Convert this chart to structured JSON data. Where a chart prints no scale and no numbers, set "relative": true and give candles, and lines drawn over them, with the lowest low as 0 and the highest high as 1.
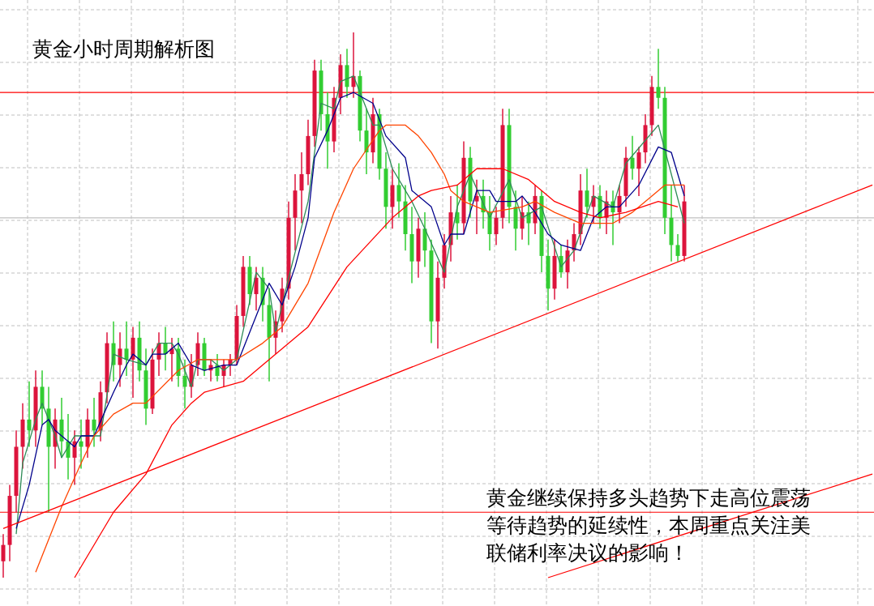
{
  "chart_data": {
    "type": "candlestick",
    "title": "黄金小时周期解析图",
    "annotations": [
      "黄金继续保持多头趋势下走高位震荡等待趋势的延续性，本周重点关注美联储利率决议的影响！"
    ],
    "relative": true,
    "grid": true,
    "categories": [
      null,
      null,
      null,
      null,
      null,
      null,
      null,
      null,
      null,
      null,
      null,
      null,
      null,
      null,
      null,
      null,
      null,
      null,
      null,
      null,
      null,
      null,
      null,
      null,
      null,
      null,
      null,
      null,
      null,
      null,
      null,
      null,
      null,
      null,
      null,
      null,
      null,
      null,
      null,
      null,
      null,
      null,
      null,
      null,
      null,
      null,
      null,
      null,
      null,
      null,
      null,
      null,
      null,
      null,
      null,
      null,
      null,
      null,
      null,
      null,
      null,
      null,
      null,
      null,
      null,
      null,
      null,
      null,
      null,
      null,
      null,
      null,
      null,
      null,
      null,
      null,
      null,
      null,
      null,
      null,
      null,
      null,
      null,
      null,
      null,
      null,
      null,
      null,
      null,
      null,
      null,
      null,
      null,
      null,
      null,
      null,
      null,
      null,
      null,
      null,
      null,
      null,
      null,
      null,
      null,
      null,
      null,
      null,
      null,
      null,
      null,
      null,
      null,
      null,
      null,
      null,
      null,
      null,
      null,
      null,
      null,
      null,
      null,
      null,
      null,
      null,
      null,
      null,
      null,
      null,
      null,
      null,
      null,
      null,
      null
    ],
    "ohlc": [
      [
        0.03,
        0.08,
        0,
        0.06
      ],
      [
        0.06,
        0.17,
        0.03,
        0.15
      ],
      [
        0.15,
        0.27,
        0.12,
        0.24
      ],
      [
        0.24,
        0.32,
        0.2,
        0.29
      ],
      [
        0.29,
        0.36,
        0.24,
        0.27
      ],
      [
        0.27,
        0.38,
        0.24,
        0.35
      ],
      [
        0.35,
        0.38,
        0.28,
        0.31
      ],
      [
        0.31,
        0.35,
        0.12,
        0.24
      ],
      [
        0.24,
        0.31,
        0.2,
        0.29
      ],
      [
        0.29,
        0.33,
        0.22,
        0.25
      ],
      [
        0.25,
        0.3,
        0.18,
        0.22
      ],
      [
        0.22,
        0.27,
        0.17,
        0.25
      ],
      [
        0.25,
        0.29,
        0.2,
        0.24
      ],
      [
        0.24,
        0.31,
        0.22,
        0.29
      ],
      [
        0.29,
        0.33,
        0.24,
        0.27
      ],
      [
        0.27,
        0.36,
        0.25,
        0.34
      ],
      [
        0.34,
        0.45,
        0.32,
        0.43
      ],
      [
        0.43,
        0.47,
        0.36,
        0.39
      ],
      [
        0.39,
        0.45,
        0.35,
        0.42
      ],
      [
        0.42,
        0.47,
        0.37,
        0.4
      ],
      [
        0.4,
        0.46,
        0.33,
        0.44
      ],
      [
        0.44,
        0.47,
        0.36,
        0.38
      ],
      [
        0.38,
        0.42,
        0.28,
        0.31
      ],
      [
        0.31,
        0.42,
        0.3,
        0.4
      ],
      [
        0.4,
        0.45,
        0.37,
        0.43
      ],
      [
        0.43,
        0.46,
        0.38,
        0.41
      ],
      [
        0.41,
        0.44,
        0.36,
        0.42
      ],
      [
        0.42,
        0.44,
        0.35,
        0.37
      ],
      [
        0.37,
        0.4,
        0.31,
        0.35
      ],
      [
        0.35,
        0.41,
        0.33,
        0.39
      ],
      [
        0.39,
        0.45,
        0.37,
        0.43
      ],
      [
        0.43,
        0.44,
        0.37,
        0.38
      ],
      [
        0.38,
        0.4,
        0.36,
        0.39
      ],
      [
        0.39,
        0.41,
        0.36,
        0.37
      ],
      [
        0.37,
        0.4,
        0.35,
        0.39
      ],
      [
        0.39,
        0.41,
        0.37,
        0.4
      ],
      [
        0.4,
        0.5,
        0.39,
        0.48
      ],
      [
        0.48,
        0.59,
        0.46,
        0.57
      ],
      [
        0.57,
        0.59,
        0.5,
        0.52
      ],
      [
        0.52,
        0.57,
        0.49,
        0.55
      ],
      [
        0.55,
        0.57,
        0.47,
        0.5
      ],
      [
        0.5,
        0.53,
        0.36,
        0.44
      ],
      [
        0.44,
        0.49,
        0.41,
        0.47
      ],
      [
        0.47,
        0.55,
        0.45,
        0.53
      ],
      [
        0.53,
        0.69,
        0.51,
        0.66
      ],
      [
        0.66,
        0.74,
        0.6,
        0.71
      ],
      [
        0.71,
        0.78,
        0.65,
        0.74
      ],
      [
        0.74,
        0.84,
        0.72,
        0.81
      ],
      [
        0.81,
        0.95,
        0.79,
        0.93
      ],
      [
        0.93,
        0.95,
        0.82,
        0.85
      ],
      [
        0.85,
        0.89,
        0.75,
        0.8
      ],
      [
        0.8,
        0.9,
        0.78,
        0.88
      ],
      [
        0.88,
        0.96,
        0.85,
        0.94
      ],
      [
        0.94,
        0.97,
        0.88,
        0.9
      ],
      [
        0.9,
        1,
        0.88,
        0.92
      ],
      [
        0.92,
        0.93,
        0.8,
        0.82
      ],
      [
        0.82,
        0.86,
        0.74,
        0.78
      ],
      [
        0.78,
        0.88,
        0.76,
        0.85
      ],
      [
        0.85,
        0.86,
        0.73,
        0.75
      ],
      [
        0.75,
        0.78,
        0.64,
        0.68
      ],
      [
        0.68,
        0.75,
        0.64,
        0.72
      ],
      [
        0.72,
        0.76,
        0.66,
        0.69
      ],
      [
        0.69,
        0.72,
        0.6,
        0.63
      ],
      [
        0.63,
        0.68,
        0.54,
        0.58
      ],
      [
        0.58,
        0.66,
        0.55,
        0.64
      ],
      [
        0.64,
        0.67,
        0.57,
        0.6
      ],
      [
        0.6,
        0.62,
        0.43,
        0.47
      ],
      [
        0.47,
        0.58,
        0.42,
        0.55
      ],
      [
        0.55,
        0.63,
        0.53,
        0.61
      ],
      [
        0.61,
        0.7,
        0.58,
        0.67
      ],
      [
        0.67,
        0.72,
        0.62,
        0.65
      ],
      [
        0.65,
        0.8,
        0.63,
        0.77
      ],
      [
        0.77,
        0.79,
        0.66,
        0.69
      ],
      [
        0.69,
        0.73,
        0.63,
        0.7
      ],
      [
        0.7,
        0.73,
        0.64,
        0.67
      ],
      [
        0.67,
        0.7,
        0.6,
        0.63
      ],
      [
        0.63,
        0.68,
        0.61,
        0.66
      ],
      [
        0.66,
        0.86,
        0.64,
        0.83
      ],
      [
        0.83,
        0.86,
        0.65,
        0.68
      ],
      [
        0.68,
        0.71,
        0.6,
        0.64
      ],
      [
        0.64,
        0.7,
        0.62,
        0.67
      ],
      [
        0.67,
        0.69,
        0.61,
        0.65
      ],
      [
        0.65,
        0.72,
        0.63,
        0.7
      ],
      [
        0.7,
        0.71,
        0.56,
        0.59
      ],
      [
        0.59,
        0.62,
        0.49,
        0.53
      ],
      [
        0.53,
        0.62,
        0.51,
        0.59
      ],
      [
        0.59,
        0.61,
        0.55,
        0.56
      ],
      [
        0.56,
        0.62,
        0.53,
        0.6
      ],
      [
        0.6,
        0.65,
        0.58,
        0.63
      ],
      [
        0.63,
        0.74,
        0.61,
        0.71
      ],
      [
        0.71,
        0.75,
        0.66,
        0.68
      ],
      [
        0.68,
        0.72,
        0.65,
        0.7
      ],
      [
        0.7,
        0.72,
        0.64,
        0.66
      ],
      [
        0.66,
        0.71,
        0.63,
        0.69
      ],
      [
        0.69,
        0.71,
        0.61,
        0.67
      ],
      [
        0.67,
        0.72,
        0.65,
        0.7
      ],
      [
        0.7,
        0.79,
        0.68,
        0.77
      ],
      [
        0.77,
        0.81,
        0.73,
        0.75
      ],
      [
        0.75,
        0.79,
        0.7,
        0.78
      ],
      [
        0.78,
        0.85,
        0.76,
        0.83
      ],
      [
        0.83,
        0.92,
        0.81,
        0.9
      ],
      [
        0.9,
        0.97,
        0.86,
        0.88
      ],
      [
        0.88,
        0.9,
        0.63,
        0.66
      ],
      [
        0.66,
        0.72,
        0.58,
        0.61
      ],
      [
        0.61,
        0.63,
        0.58,
        0.59
      ],
      [
        0.59,
        0.72,
        0.58,
        0.69
      ],
      null,
      null,
      null,
      null,
      null,
      null,
      null,
      null,
      null,
      null,
      null,
      null,
      null,
      null,
      null,
      null,
      null,
      null,
      null,
      null,
      null,
      null,
      null,
      null,
      null,
      null,
      null,
      null,
      null
    ],
    "colors": [
      "#dc143c",
      "#dc143c",
      "#dc143c",
      "#dc143c",
      "#32cd32",
      "#dc143c",
      "#32cd32",
      "#32cd32",
      "#dc143c",
      "#32cd32",
      "#32cd32",
      "#dc143c",
      "#32cd32",
      "#dc143c",
      "#32cd32",
      "#dc143c",
      "#dc143c",
      "#32cd32",
      "#dc143c",
      "#32cd32",
      "#dc143c",
      "#32cd32",
      "#32cd32",
      "#dc143c",
      "#dc143c",
      "#32cd32",
      "#dc143c",
      "#32cd32",
      "#32cd32",
      "#dc143c",
      "#dc143c",
      "#32cd32",
      "#dc143c",
      "#32cd32",
      "#dc143c",
      "#dc143c",
      "#dc143c",
      "#dc143c",
      "#32cd32",
      "#dc143c",
      "#32cd32",
      "#32cd32",
      "#dc143c",
      "#dc143c",
      "#dc143c",
      "#dc143c",
      "#dc143c",
      "#dc143c",
      "#dc143c",
      "#32cd32",
      "#32cd32",
      "#dc143c",
      "#dc143c",
      "#32cd32",
      "#dc143c",
      "#32cd32",
      "#32cd32",
      "#dc143c",
      "#32cd32",
      "#32cd32",
      "#dc143c",
      "#32cd32",
      "#32cd32",
      "#32cd32",
      "#dc143c",
      "#32cd32",
      "#32cd32",
      "#dc143c",
      "#dc143c",
      "#dc143c",
      "#32cd32",
      "#dc143c",
      "#32cd32",
      "#dc143c",
      "#32cd32",
      "#32cd32",
      "#dc143c",
      "#dc143c",
      "#32cd32",
      "#32cd32",
      "#dc143c",
      "#32cd32",
      "#dc143c",
      "#32cd32",
      "#32cd32",
      "#dc143c",
      "#32cd32",
      "#dc143c",
      "#dc143c",
      "#dc143c",
      "#32cd32",
      "#dc143c",
      "#32cd32",
      "#dc143c",
      "#32cd32",
      "#dc143c",
      "#dc143c",
      "#32cd32",
      "#dc143c",
      "#dc143c",
      "#dc143c",
      "#32cd32",
      "#32cd32",
      "#32cd32",
      "#32cd32",
      "#dc143c",
      null,
      null,
      null,
      null,
      null,
      null,
      null,
      null,
      null,
      null,
      null,
      null,
      null,
      null,
      null,
      null,
      null,
      null,
      null,
      null,
      null,
      null,
      null,
      null,
      null,
      null,
      null,
      null,
      null
    ],
    "series": [
      {
        "type": "line",
        "color": "#2e8b57",
        "values": [
          null,
          null,
          0.08,
          0.21,
          null,
          0.29,
          0.32,
          null,
          0.26,
          0.22,
          null,
          0.26,
          null,
          null,
          null,
          0.26,
          null,
          0.41,
          null,
          0.4,
          null,
          null,
          0.39,
          null,
          0.43,
          null,
          0.43,
          0.41,
          null,
          0.35,
          0.4,
          null,
          0.4,
          null,
          0.38,
          null,
          0.4,
          null,
          null,
          0.56,
          null,
          0.53,
          0.45,
          null,
          0.55,
          null,
          null,
          0.69,
          null,
          0.87,
          null,
          0.86,
          0.91,
          null,
          0.92,
          0.89,
          null,
          0.83,
          0.83,
          null,
          0.75,
          null,
          null,
          0.69,
          null,
          0.64,
          null,
          null,
          0.56,
          null,
          0.68,
          null,
          0.74,
          null,
          null,
          0.66,
          null,
          null,
          0.73,
          null,
          0.66,
          null,
          null,
          0.68,
          null,
          null,
          0.57,
          null,
          0.6,
          null,
          null,
          0.7,
          null,
          null,
          0.68,
          null,
          0.76,
          null,
          null,
          null,
          null,
          0.83,
          null,
          0.74,
          null,
          0.65,
          null,
          null,
          null,
          null,
          null,
          null,
          null,
          null,
          null,
          null,
          null,
          null,
          null,
          null,
          null,
          null,
          null,
          null,
          null,
          null,
          null,
          null,
          null,
          null,
          null,
          null,
          null,
          null,
          null
        ]
      },
      {
        "type": "line",
        "color": "#00008b",
        "values": [
          null,
          null,
          0.09,
          null,
          0.17,
          null,
          0.28,
          0.29,
          0.27,
          0.26,
          null,
          0.24,
          0.26,
          null,
          0.26,
          null,
          null,
          0.34,
          null,
          0.39,
          0.41,
          null,
          0.39,
          0.41,
          null,
          0.41,
          null,
          0.43,
          null,
          0.39,
          null,
          0.38,
          null,
          null,
          0.39,
          null,
          0.39,
          null,
          null,
          null,
          null,
          0.54,
          null,
          0.5,
          null,
          0.57,
          null,
          0.66,
          0.77,
          null,
          0.82,
          null,
          0.88,
          null,
          0.89,
          null,
          null,
          0.87,
          null,
          0.81,
          null,
          null,
          0.77,
          0.71,
          null,
          null,
          0.68,
          null,
          0.61,
          0.63,
          null,
          0.63,
          null,
          0.71,
          null,
          0.71,
          0.69,
          null,
          null,
          0.69,
          0.7,
          null,
          0.67,
          null,
          0.63,
          null,
          0.61,
          null,
          null,
          0.6,
          null,
          0.66,
          null,
          0.68,
          null,
          0.68,
          null,
          null,
          0.72,
          null,
          null,
          0.79,
          null,
          0.78,
          0.74,
          0.7,
          null,
          null,
          null,
          null,
          null,
          null,
          null,
          null,
          null,
          null,
          null,
          null,
          null,
          null,
          null,
          null,
          null,
          null,
          null,
          null,
          null,
          null,
          null,
          null,
          null,
          null,
          null,
          null,
          null
        ]
      },
      {
        "type": "line",
        "color": "#ff4500",
        "values": [
          null,
          null,
          null,
          null,
          null,
          0.01,
          null,
          null,
          null,
          0.13,
          null,
          null,
          0.21,
          null,
          0.26,
          null,
          null,
          0.3,
          null,
          null,
          0.32,
          null,
          0.32,
          null,
          null,
          null,
          null,
          0.38,
          null,
          null,
          0.4,
          null,
          null,
          null,
          null,
          null,
          0.4,
          null,
          null,
          null,
          0.43,
          null,
          null,
          0.46,
          null,
          null,
          null,
          0.54,
          null,
          null,
          null,
          0.67,
          null,
          null,
          0.75,
          null,
          null,
          null,
          0.82,
          0.83,
          null,
          null,
          0.83,
          null,
          0.81,
          null,
          0.78,
          null,
          0.74,
          0.71,
          null,
          0.69,
          null,
          null,
          null,
          0.67,
          null,
          null,
          null,
          null,
          0.68,
          null,
          0.69,
          null,
          null,
          0.67,
          null,
          null,
          null,
          0.65,
          null,
          null,
          null,
          null,
          0.65,
          null,
          null,
          0.67,
          null,
          null,
          0.7,
          null,
          0.72,
          null,
          null,
          0.72,
          null,
          null,
          null,
          null,
          null,
          null,
          null,
          null,
          null,
          null,
          null,
          null,
          null,
          null,
          null,
          null,
          null,
          null,
          null,
          null,
          null,
          null,
          null,
          null,
          null,
          null,
          null,
          null,
          null
        ]
      },
      {
        "type": "line",
        "color": "#ff0000",
        "values": [
          null,
          null,
          null,
          null,
          null,
          null,
          null,
          null,
          null,
          null,
          null,
          0,
          null,
          null,
          null,
          null,
          null,
          0.12,
          null,
          null,
          null,
          null,
          0.19,
          null,
          null,
          null,
          0.28,
          null,
          null,
          0.32,
          null,
          0.34,
          null,
          null,
          0.35,
          null,
          null,
          0.36,
          null,
          null,
          0.39,
          null,
          null,
          null,
          null,
          null,
          null,
          0.46,
          null,
          null,
          null,
          null,
          null,
          0.57,
          null,
          null,
          null,
          null,
          null,
          null,
          0.66,
          null,
          null,
          null,
          0.7,
          null,
          0.71,
          null,
          null,
          null,
          0.72,
          null,
          null,
          0.75,
          null,
          null,
          null,
          0.75,
          null,
          null,
          null,
          0.73,
          null,
          null,
          null,
          0.69,
          null,
          null,
          null,
          0.67,
          null,
          null,
          0.66,
          null,
          null,
          null,
          0.67,
          null,
          null,
          null,
          null,
          0.69,
          null,
          null,
          0.68,
          null,
          null,
          null,
          null,
          null,
          null,
          null,
          null,
          null,
          null,
          null,
          null,
          null,
          null,
          null,
          null,
          null,
          null,
          null,
          null,
          null,
          null,
          null,
          null,
          null,
          null,
          null,
          null,
          null,
          null
        ]
      },
      {
        "type": "line",
        "color": "#ff0000",
        "values": [
          0.09,
          null,
          null,
          null,
          null,
          null,
          null,
          null,
          null,
          null,
          null,
          null,
          null,
          null,
          null,
          null,
          null,
          null,
          null,
          null,
          null,
          null,
          null,
          null,
          null,
          null,
          null,
          null,
          null,
          null,
          null,
          null,
          null,
          null,
          null,
          null,
          null,
          null,
          null,
          null,
          null,
          null,
          null,
          null,
          null,
          null,
          null,
          null,
          null,
          null,
          null,
          null,
          null,
          null,
          null,
          null,
          null,
          null,
          null,
          null,
          null,
          null,
          null,
          null,
          null,
          null,
          null,
          null,
          null,
          null,
          null,
          null,
          null,
          null,
          null,
          null,
          null,
          null,
          null,
          null,
          null,
          null,
          null,
          null,
          null,
          null,
          null,
          null,
          null,
          null,
          null,
          null,
          null,
          null,
          null,
          null,
          null,
          null,
          null,
          null,
          null,
          null,
          null,
          null,
          null,
          null,
          null,
          null,
          null,
          null,
          null,
          null,
          null,
          null,
          null,
          null,
          null,
          null,
          null,
          null,
          null,
          null,
          null,
          null,
          null,
          null,
          null,
          null,
          null,
          null,
          null,
          null,
          null,
          null,
          0.72
        ]
      },
      {
        "type": "line",
        "color": "#ff0000",
        "values": [
          null,
          null,
          null,
          null,
          null,
          null,
          null,
          null,
          null,
          null,
          null,
          null,
          null,
          null,
          null,
          null,
          null,
          null,
          null,
          null,
          null,
          null,
          null,
          null,
          null,
          null,
          null,
          null,
          null,
          null,
          null,
          null,
          null,
          null,
          null,
          null,
          null,
          null,
          null,
          null,
          null,
          null,
          null,
          null,
          null,
          null,
          null,
          null,
          null,
          null,
          null,
          null,
          null,
          null,
          null,
          null,
          null,
          null,
          null,
          null,
          null,
          null,
          null,
          null,
          null,
          null,
          null,
          null,
          null,
          null,
          null,
          null,
          null,
          null,
          null,
          null,
          null,
          null,
          null,
          null,
          null,
          null,
          null,
          null,
          0,
          null,
          null,
          null,
          null,
          null,
          null,
          null,
          null,
          null,
          null,
          null,
          null,
          null,
          null,
          null,
          null,
          null,
          null,
          null,
          null,
          null,
          null,
          null,
          null,
          null,
          null,
          null,
          null,
          null,
          null,
          null,
          null,
          null,
          null,
          null,
          null,
          null,
          null,
          null,
          null,
          null,
          null,
          null,
          null,
          null,
          null,
          null,
          null,
          null,
          0.19
        ]
      }
    ],
    "ref_lines": [
      {
        "axis": "y",
        "value": 0.89,
        "color": "#ff0000"
      },
      {
        "axis": "y",
        "value": 0.12,
        "color": "#ff0000"
      },
      {
        "axis": "y",
        "value": 0.66,
        "color": "#c0c0c0"
      }
    ]
  }
}
